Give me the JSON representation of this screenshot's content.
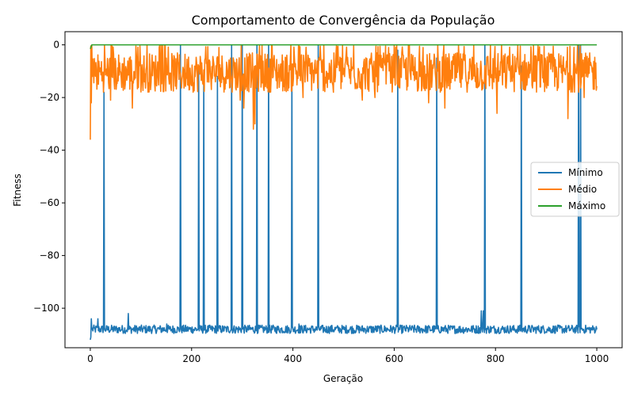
{
  "chart_data": {
    "type": "line",
    "title": "Comportamento de Convergência da População",
    "xlabel": "Geração",
    "ylabel": "Fitness",
    "xlim": [
      -50,
      1050
    ],
    "ylim": [
      -115,
      5
    ],
    "x_ticks": [
      0,
      200,
      400,
      600,
      800,
      1000
    ],
    "y_ticks": [
      0,
      -20,
      -40,
      -60,
      -80,
      -100
    ],
    "grid": false,
    "legend_position": "center-right",
    "series": [
      {
        "name": "Mínimo",
        "color": "#1f77b4",
        "description": "Noisy baseline around -108 with occasional spikes up to near 0",
        "baseline": -108,
        "noise": 1.6,
        "start_points": [
          [
            0,
            -112
          ],
          [
            1,
            -111
          ],
          [
            2,
            -104
          ],
          [
            3,
            -108
          ]
        ],
        "spikes": [
          [
            27,
            -18
          ],
          [
            178,
            0
          ],
          [
            214,
            -8
          ],
          [
            224,
            -12
          ],
          [
            251,
            -12
          ],
          [
            279,
            0
          ],
          [
            300,
            0
          ],
          [
            329,
            0
          ],
          [
            352,
            0
          ],
          [
            398,
            -8
          ],
          [
            450,
            0
          ],
          [
            607,
            -2
          ],
          [
            684,
            -5
          ],
          [
            779,
            0
          ],
          [
            851,
            -8
          ],
          [
            964,
            0
          ],
          [
            968,
            0
          ]
        ],
        "minor_peaks": [
          [
            15,
            -104
          ],
          [
            75,
            -102
          ],
          [
            151,
            -106
          ],
          [
            412,
            -106
          ],
          [
            772,
            -101
          ],
          [
            776,
            -101
          ]
        ]
      },
      {
        "name": "Médio",
        "color": "#ff7f0e",
        "description": "Starts at -36, rises quickly and fluctuates between about -25 and 0",
        "start_points": [
          [
            0,
            -36
          ],
          [
            2,
            -22
          ],
          [
            4,
            -12
          ],
          [
            6,
            -9
          ]
        ],
        "typical_range": [
          -18,
          -3
        ],
        "dips": [
          [
            40,
            -21
          ],
          [
            83,
            -24
          ],
          [
            296,
            -21
          ],
          [
            303,
            -24
          ],
          [
            322,
            -32
          ],
          [
            325,
            -30
          ],
          [
            420,
            -20
          ],
          [
            480,
            -18
          ],
          [
            537,
            -21
          ],
          [
            562,
            -20
          ],
          [
            668,
            -22
          ],
          [
            700,
            -24
          ],
          [
            803,
            -26
          ],
          [
            943,
            -28
          ],
          [
            975,
            -20
          ]
        ]
      },
      {
        "name": "Máximo",
        "color": "#2ca02c",
        "description": "Flat at 0 after first generation",
        "points": [
          [
            0,
            -1.5
          ],
          [
            3,
            0
          ],
          [
            1000,
            0
          ]
        ]
      }
    ]
  }
}
